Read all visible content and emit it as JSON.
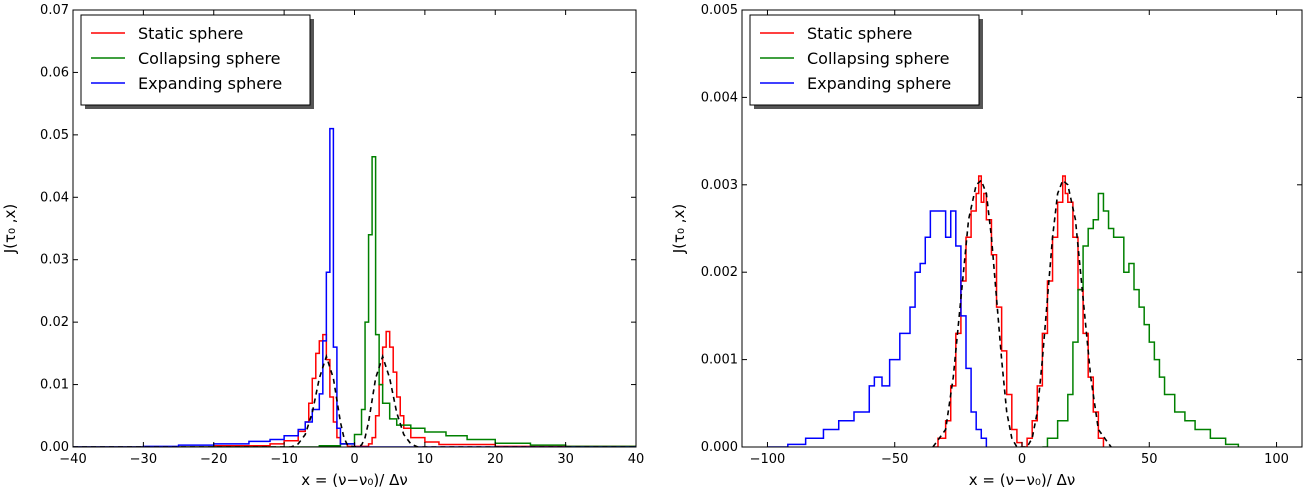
{
  "chart_data": [
    {
      "type": "line",
      "title": "",
      "xlabel": "x = (ν−ν₀)/ Δν",
      "ylabel": "J(τ₀ ,x)",
      "xlim": [
        -40,
        40
      ],
      "ylim": [
        0,
        0.07
      ],
      "xticks": [
        -40,
        -30,
        -20,
        -10,
        0,
        10,
        20,
        30,
        40
      ],
      "xtick_labels": [
        "−40",
        "−30",
        "−20",
        "−10",
        "0",
        "10",
        "20",
        "30",
        "40"
      ],
      "yticks": [
        0,
        0.01,
        0.02,
        0.03,
        0.04,
        0.05,
        0.06,
        0.07
      ],
      "ytick_labels": [
        "0.00",
        "0.01",
        "0.02",
        "0.03",
        "0.04",
        "0.05",
        "0.06",
        "0.07"
      ],
      "grid": false,
      "legend_position": "top-left",
      "series": [
        {
          "name": "Static sphere",
          "color": "#ff0000",
          "style": "step",
          "points": [
            [
              -40,
              0
            ],
            [
              -20,
              0.0002
            ],
            [
              -12,
              0.0005
            ],
            [
              -10,
              0.001
            ],
            [
              -8,
              0.0025
            ],
            [
              -7,
              0.004
            ],
            [
              -6.5,
              0.007
            ],
            [
              -6,
              0.011
            ],
            [
              -5.5,
              0.015
            ],
            [
              -5,
              0.017
            ],
            [
              -4.5,
              0.018
            ],
            [
              -4,
              0.014
            ],
            [
              -3.5,
              0.008
            ],
            [
              -3,
              0.004
            ],
            [
              -2.5,
              0.0015
            ],
            [
              -2,
              0.0005
            ],
            [
              -1,
              0.0001
            ],
            [
              1,
              0.0001
            ],
            [
              2,
              0.0005
            ],
            [
              2.5,
              0.0015
            ],
            [
              3,
              0.005
            ],
            [
              3.5,
              0.01
            ],
            [
              4,
              0.016
            ],
            [
              4.5,
              0.0185
            ],
            [
              5,
              0.016
            ],
            [
              5.5,
              0.012
            ],
            [
              6,
              0.008
            ],
            [
              6.5,
              0.005
            ],
            [
              7,
              0.003
            ],
            [
              8,
              0.0015
            ],
            [
              10,
              0.0008
            ],
            [
              12,
              0.0004
            ],
            [
              20,
              0.0001
            ],
            [
              40,
              0
            ]
          ]
        },
        {
          "name": "Collapsing sphere",
          "color": "#008000",
          "style": "step",
          "points": [
            [
              -40,
              0
            ],
            [
              -10,
              0
            ],
            [
              -5,
              0.0002
            ],
            [
              -2,
              0.0005
            ],
            [
              0,
              0.002
            ],
            [
              1,
              0.006
            ],
            [
              1.5,
              0.02
            ],
            [
              2,
              0.034
            ],
            [
              2.5,
              0.0465
            ],
            [
              3,
              0.018
            ],
            [
              3.5,
              0.01
            ],
            [
              4,
              0.007
            ],
            [
              5,
              0.0045
            ],
            [
              6,
              0.0035
            ],
            [
              8,
              0.003
            ],
            [
              10,
              0.0024
            ],
            [
              13,
              0.0018
            ],
            [
              16,
              0.0012
            ],
            [
              20,
              0.0006
            ],
            [
              25,
              0.0003
            ],
            [
              30,
              0.0001
            ],
            [
              40,
              0
            ]
          ]
        },
        {
          "name": "Expanding sphere",
          "color": "#0000ff",
          "style": "step",
          "points": [
            [
              -40,
              0
            ],
            [
              -30,
              0.0001
            ],
            [
              -25,
              0.0003
            ],
            [
              -20,
              0.0005
            ],
            [
              -15,
              0.0009
            ],
            [
              -12,
              0.0012
            ],
            [
              -10,
              0.0018
            ],
            [
              -8,
              0.0028
            ],
            [
              -7,
              0.004
            ],
            [
              -6,
              0.006
            ],
            [
              -5,
              0.0085
            ],
            [
              -4.5,
              0.017
            ],
            [
              -4,
              0.028
            ],
            [
              -3.5,
              0.051
            ],
            [
              -3,
              0.016
            ],
            [
              -2.5,
              0.003
            ],
            [
              -2,
              0.0005
            ],
            [
              0,
              0
            ],
            [
              40,
              0
            ]
          ]
        },
        {
          "name": "",
          "color": "#000000",
          "style": "dashed",
          "points": [
            [
              -40,
              0
            ],
            [
              -9,
              0
            ],
            [
              -8,
              0.0005
            ],
            [
              -7,
              0.002
            ],
            [
              -6,
              0.0055
            ],
            [
              -5,
              0.011
            ],
            [
              -4,
              0.0145
            ],
            [
              -3,
              0.011
            ],
            [
              -2,
              0.004
            ],
            [
              -1.5,
              0.0015
            ],
            [
              -1,
              0.0003
            ],
            [
              0,
              0
            ],
            [
              1,
              0.0003
            ],
            [
              1.5,
              0.0015
            ],
            [
              2,
              0.004
            ],
            [
              3,
              0.011
            ],
            [
              4,
              0.0145
            ],
            [
              5,
              0.011
            ],
            [
              6,
              0.0055
            ],
            [
              7,
              0.002
            ],
            [
              8,
              0.0005
            ],
            [
              9,
              0
            ],
            [
              40,
              0
            ]
          ]
        }
      ]
    },
    {
      "type": "line",
      "title": "",
      "xlabel": "x = (ν−ν₀)/ Δν",
      "ylabel": "J(τ₀ ,x)",
      "xlim": [
        -110,
        110
      ],
      "ylim": [
        0,
        0.005
      ],
      "xticks": [
        -100,
        -50,
        0,
        50,
        100
      ],
      "xtick_labels": [
        "−100",
        "−50",
        "0",
        "50",
        "100"
      ],
      "yticks": [
        0,
        0.001,
        0.002,
        0.003,
        0.004,
        0.005
      ],
      "ytick_labels": [
        "0.000",
        "0.001",
        "0.002",
        "0.003",
        "0.004",
        "0.005"
      ],
      "grid": false,
      "legend_position": "top-left",
      "series": [
        {
          "name": "Static sphere",
          "color": "#ff0000",
          "style": "step",
          "points": [
            [
              -35,
              0
            ],
            [
              -33,
              0.0001
            ],
            [
              -30,
              0.0003
            ],
            [
              -28,
              0.0007
            ],
            [
              -26,
              0.0013
            ],
            [
              -24,
              0.0019
            ],
            [
              -22,
              0.0024
            ],
            [
              -20,
              0.0027
            ],
            [
              -18,
              0.0029
            ],
            [
              -17,
              0.0031
            ],
            [
              -16,
              0.0028
            ],
            [
              -15,
              0.0029
            ],
            [
              -14,
              0.0026
            ],
            [
              -12,
              0.0022
            ],
            [
              -10,
              0.0016
            ],
            [
              -8,
              0.0011
            ],
            [
              -6,
              0.0006
            ],
            [
              -4,
              0.0002
            ],
            [
              -2,
              5e-05
            ],
            [
              0,
              0
            ],
            [
              2,
              0.0001
            ],
            [
              4,
              0.0003
            ],
            [
              6,
              0.0007
            ],
            [
              8,
              0.0013
            ],
            [
              10,
              0.0019
            ],
            [
              12,
              0.0024
            ],
            [
              14,
              0.0028
            ],
            [
              16,
              0.0031
            ],
            [
              17,
              0.0029
            ],
            [
              18,
              0.0028
            ],
            [
              20,
              0.0024
            ],
            [
              22,
              0.0018
            ],
            [
              24,
              0.0013
            ],
            [
              26,
              0.0008
            ],
            [
              28,
              0.0004
            ],
            [
              30,
              0.0001
            ],
            [
              32,
              0
            ]
          ]
        },
        {
          "name": "Collapsing sphere",
          "color": "#008000",
          "style": "step",
          "points": [
            [
              8,
              0
            ],
            [
              10,
              0.0001
            ],
            [
              14,
              0.0003
            ],
            [
              18,
              0.0006
            ],
            [
              20,
              0.0012
            ],
            [
              22,
              0.0018
            ],
            [
              24,
              0.0023
            ],
            [
              26,
              0.0025
            ],
            [
              28,
              0.0026
            ],
            [
              30,
              0.0029
            ],
            [
              32,
              0.0027
            ],
            [
              34,
              0.0025
            ],
            [
              36,
              0.0024
            ],
            [
              38,
              0.0024
            ],
            [
              40,
              0.002
            ],
            [
              42,
              0.0021
            ],
            [
              44,
              0.0018
            ],
            [
              46,
              0.0016
            ],
            [
              48,
              0.0014
            ],
            [
              50,
              0.0012
            ],
            [
              52,
              0.001
            ],
            [
              54,
              0.0008
            ],
            [
              56,
              0.0006
            ],
            [
              60,
              0.0004
            ],
            [
              64,
              0.0003
            ],
            [
              68,
              0.0002
            ],
            [
              74,
              0.0001
            ],
            [
              80,
              3e-05
            ],
            [
              85,
              0
            ]
          ]
        },
        {
          "name": "Expanding sphere",
          "color": "#0000ff",
          "style": "step",
          "points": [
            [
              -100,
              0
            ],
            [
              -92,
              3e-05
            ],
            [
              -85,
              0.0001
            ],
            [
              -78,
              0.0002
            ],
            [
              -72,
              0.0003
            ],
            [
              -66,
              0.0004
            ],
            [
              -60,
              0.0007
            ],
            [
              -58,
              0.0008
            ],
            [
              -55,
              0.0007
            ],
            [
              -52,
              0.001
            ],
            [
              -48,
              0.0013
            ],
            [
              -44,
              0.0016
            ],
            [
              -42,
              0.002
            ],
            [
              -40,
              0.0021
            ],
            [
              -38,
              0.0024
            ],
            [
              -36,
              0.0027
            ],
            [
              -32,
              0.0027
            ],
            [
              -30,
              0.0024
            ],
            [
              -28,
              0.0027
            ],
            [
              -26,
              0.0023
            ],
            [
              -24,
              0.0015
            ],
            [
              -22,
              0.0009
            ],
            [
              -20,
              0.0004
            ],
            [
              -18,
              0.0002
            ],
            [
              -16,
              0.0001
            ],
            [
              -14,
              0
            ]
          ]
        },
        {
          "name": "",
          "color": "#000000",
          "style": "dashed",
          "points": [
            [
              -35,
              0
            ],
            [
              -30,
              0.0002
            ],
            [
              -27,
              0.0008
            ],
            [
              -24,
              0.0017
            ],
            [
              -21,
              0.0026
            ],
            [
              -18,
              0.003
            ],
            [
              -16,
              0.00305
            ],
            [
              -14,
              0.0029
            ],
            [
              -12,
              0.0024
            ],
            [
              -10,
              0.0017
            ],
            [
              -8,
              0.001
            ],
            [
              -6,
              0.0004
            ],
            [
              -4,
              0.0001
            ],
            [
              -2,
              0
            ],
            [
              2,
              0
            ],
            [
              4,
              0.0001
            ],
            [
              6,
              0.0004
            ],
            [
              8,
              0.001
            ],
            [
              10,
              0.0017
            ],
            [
              12,
              0.0024
            ],
            [
              14,
              0.0029
            ],
            [
              16,
              0.00305
            ],
            [
              18,
              0.003
            ],
            [
              21,
              0.0026
            ],
            [
              24,
              0.0017
            ],
            [
              27,
              0.0008
            ],
            [
              30,
              0.0002
            ],
            [
              35,
              0
            ]
          ]
        }
      ]
    }
  ]
}
